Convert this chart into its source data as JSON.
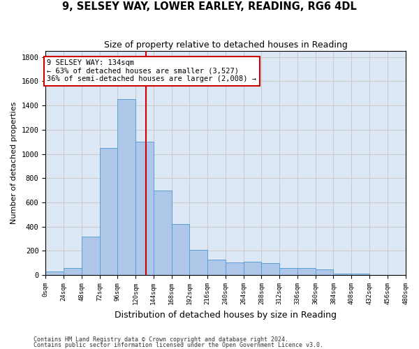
{
  "title1": "9, SELSEY WAY, LOWER EARLEY, READING, RG6 4DL",
  "title2": "Size of property relative to detached houses in Reading",
  "xlabel": "Distribution of detached houses by size in Reading",
  "ylabel": "Number of detached properties",
  "bar_edges": [
    0,
    24,
    48,
    72,
    96,
    120,
    144,
    168,
    192,
    216,
    240,
    264,
    288,
    312,
    336,
    360,
    384,
    408,
    432,
    456,
    480
  ],
  "bar_heights": [
    30,
    60,
    320,
    1050,
    1450,
    1100,
    700,
    420,
    210,
    130,
    105,
    110,
    100,
    60,
    60,
    50,
    15,
    10,
    0,
    0
  ],
  "bar_color": "#aec6e8",
  "bar_edgecolor": "#5a9fd4",
  "property_size": 134,
  "vline_color": "#cc0000",
  "annotation_line1": "9 SELSEY WAY: 134sqm",
  "annotation_line2": "← 63% of detached houses are smaller (3,527)",
  "annotation_line3": "36% of semi-detached houses are larger (2,008) →",
  "annotation_box_edgecolor": "#cc0000",
  "annotation_box_facecolor": "#ffffff",
  "ylim": [
    0,
    1850
  ],
  "yticks": [
    0,
    200,
    400,
    600,
    800,
    1000,
    1200,
    1400,
    1600,
    1800
  ],
  "grid_color": "#cccccc",
  "bg_color": "#dce8f5",
  "footer1": "Contains HM Land Registry data © Crown copyright and database right 2024.",
  "footer2": "Contains public sector information licensed under the Open Government Licence v3.0."
}
